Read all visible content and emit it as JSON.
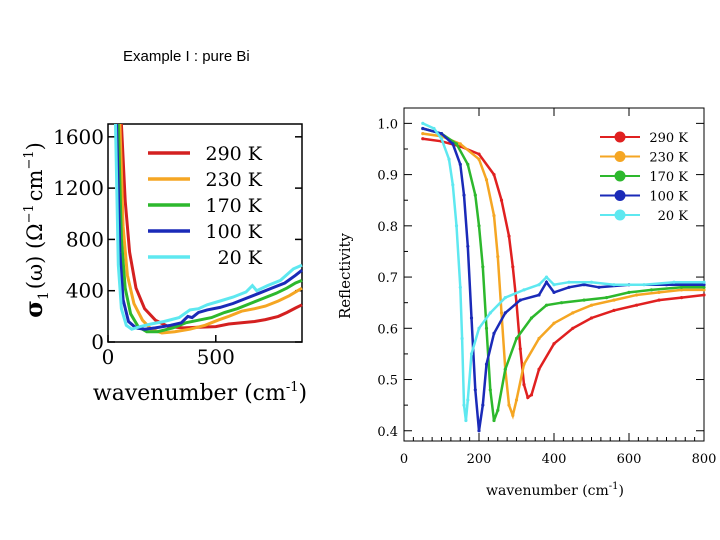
{
  "slide": {
    "title": "Example I : pure Bi"
  },
  "chart_data": [
    {
      "type": "line",
      "title": "",
      "xlabel": "wavenumber (cm-1)",
      "xlabel_main": "wavenumber (cm",
      "xlabel_sup": "-1",
      "xlabel_close": ")",
      "ylabel": "σ1(ω) (Ω-1 cm-1)",
      "ylabel_sigma": "σ",
      "ylabel_sub": "1",
      "ylabel_rest": "(ω) (Ω",
      "ylabel_sup1": "−1",
      "ylabel_cm": "cm",
      "ylabel_sup2": "−1",
      "ylabel_close": ")",
      "xlim": [
        0,
        900
      ],
      "ylim": [
        0,
        1700
      ],
      "xticks": [
        0,
        500
      ],
      "yticks": [
        0,
        400,
        800,
        1200,
        1600
      ],
      "legend_position": "top-right",
      "series": [
        {
          "name": "290 K",
          "color": "#d42020",
          "x": [
            62,
            80,
            100,
            130,
            170,
            220,
            280,
            350,
            420,
            500,
            560,
            620,
            680,
            730,
            790,
            830,
            870,
            900
          ],
          "y": [
            1700,
            1100,
            700,
            420,
            260,
            170,
            120,
            110,
            115,
            120,
            140,
            150,
            160,
            175,
            200,
            230,
            265,
            290
          ]
        },
        {
          "name": "230 K",
          "color": "#f5a623",
          "x": [
            55,
            70,
            90,
            120,
            160,
            200,
            250,
            310,
            380,
            450,
            510,
            560,
            620,
            680,
            730,
            790,
            840,
            880,
            900
          ],
          "y": [
            1700,
            900,
            520,
            300,
            170,
            100,
            70,
            80,
            100,
            130,
            170,
            200,
            240,
            260,
            280,
            320,
            360,
            400,
            420
          ]
        },
        {
          "name": "170 K",
          "color": "#2db82d",
          "x": [
            48,
            62,
            80,
            105,
            140,
            180,
            230,
            300,
            360,
            420,
            480,
            540,
            600,
            660,
            720,
            780,
            830,
            870,
            900
          ],
          "y": [
            1700,
            800,
            420,
            220,
            120,
            80,
            80,
            110,
            150,
            170,
            190,
            230,
            260,
            300,
            340,
            380,
            420,
            460,
            480
          ]
        },
        {
          "name": "100 K",
          "color": "#1a2ab8",
          "x": [
            40,
            55,
            70,
            95,
            130,
            170,
            220,
            290,
            340,
            370,
            390,
            420,
            460,
            520,
            580,
            640,
            700,
            760,
            820,
            870,
            900
          ],
          "y": [
            1700,
            700,
            330,
            160,
            110,
            100,
            110,
            130,
            150,
            200,
            190,
            230,
            250,
            270,
            300,
            340,
            380,
            420,
            460,
            520,
            560
          ]
        },
        {
          "name": "20 K",
          "color": "#5ee8f0",
          "x": [
            35,
            48,
            62,
            85,
            110,
            150,
            200,
            260,
            330,
            380,
            420,
            460,
            520,
            580,
            640,
            670,
            690,
            740,
            800,
            860,
            900
          ],
          "y": [
            1700,
            600,
            260,
            130,
            100,
            120,
            140,
            160,
            190,
            250,
            260,
            290,
            320,
            350,
            390,
            440,
            400,
            440,
            480,
            570,
            600
          ]
        }
      ]
    },
    {
      "type": "scatter",
      "title": "",
      "xlabel": "wavenumber (cm-1)",
      "xlabel_main": "wavenumber (cm",
      "xlabel_sup": "-1",
      "xlabel_close": ")",
      "ylabel": "Reflectivity",
      "xlim": [
        0,
        800
      ],
      "ylim": [
        0.38,
        1.03
      ],
      "xticks": [
        0,
        200,
        400,
        600,
        800
      ],
      "yticks": [
        0.4,
        0.5,
        0.6,
        0.7,
        0.8,
        0.9,
        1.0
      ],
      "yticklabels": [
        "0.4",
        "0.5",
        "0.6",
        "0.7",
        "0.8",
        "0.9",
        "1.0"
      ],
      "legend_position": "top-right",
      "series": [
        {
          "name": "290 K",
          "color": "#e02020",
          "x": [
            50,
            100,
            150,
            200,
            240,
            260,
            280,
            290,
            300,
            310,
            320,
            330,
            340,
            360,
            400,
            450,
            500,
            560,
            620,
            680,
            740,
            800
          ],
          "y": [
            0.97,
            0.965,
            0.955,
            0.94,
            0.9,
            0.85,
            0.78,
            0.72,
            0.65,
            0.56,
            0.49,
            0.465,
            0.47,
            0.52,
            0.57,
            0.6,
            0.62,
            0.635,
            0.645,
            0.655,
            0.66,
            0.665
          ]
        },
        {
          "name": "230 K",
          "color": "#f5a623",
          "x": [
            50,
            100,
            150,
            200,
            220,
            240,
            250,
            260,
            270,
            280,
            290,
            300,
            320,
            360,
            400,
            450,
            500,
            560,
            620,
            680,
            740,
            800
          ],
          "y": [
            0.98,
            0.975,
            0.96,
            0.93,
            0.89,
            0.82,
            0.74,
            0.63,
            0.52,
            0.45,
            0.43,
            0.46,
            0.53,
            0.58,
            0.61,
            0.63,
            0.645,
            0.655,
            0.665,
            0.67,
            0.675,
            0.675
          ]
        },
        {
          "name": "170 K",
          "color": "#2db82d",
          "x": [
            50,
            100,
            140,
            170,
            190,
            200,
            210,
            220,
            230,
            240,
            250,
            270,
            300,
            340,
            380,
            420,
            480,
            540,
            600,
            660,
            740,
            800
          ],
          "y": [
            0.99,
            0.98,
            0.96,
            0.92,
            0.86,
            0.8,
            0.72,
            0.6,
            0.48,
            0.42,
            0.44,
            0.52,
            0.58,
            0.62,
            0.645,
            0.65,
            0.655,
            0.66,
            0.67,
            0.675,
            0.68,
            0.68
          ]
        },
        {
          "name": "100 K",
          "color": "#1a2ab8",
          "x": [
            50,
            100,
            130,
            150,
            160,
            170,
            180,
            190,
            200,
            210,
            220,
            240,
            270,
            310,
            360,
            380,
            400,
            440,
            480,
            520,
            600,
            700,
            800
          ],
          "y": [
            0.99,
            0.98,
            0.96,
            0.92,
            0.86,
            0.76,
            0.62,
            0.48,
            0.4,
            0.45,
            0.53,
            0.59,
            0.63,
            0.655,
            0.665,
            0.69,
            0.67,
            0.68,
            0.685,
            0.68,
            0.685,
            0.685,
            0.685
          ]
        },
        {
          "name": "20 K",
          "color": "#5ee8f0",
          "x": [
            50,
            80,
            100,
            120,
            130,
            140,
            150,
            155,
            160,
            165,
            170,
            180,
            200,
            230,
            270,
            320,
            360,
            380,
            400,
            440,
            500,
            560,
            640,
            720,
            800
          ],
          "y": [
            1.0,
            0.99,
            0.97,
            0.93,
            0.88,
            0.8,
            0.68,
            0.58,
            0.45,
            0.42,
            0.46,
            0.55,
            0.6,
            0.63,
            0.66,
            0.675,
            0.685,
            0.7,
            0.685,
            0.69,
            0.69,
            0.685,
            0.685,
            0.69,
            0.69
          ]
        }
      ]
    }
  ]
}
